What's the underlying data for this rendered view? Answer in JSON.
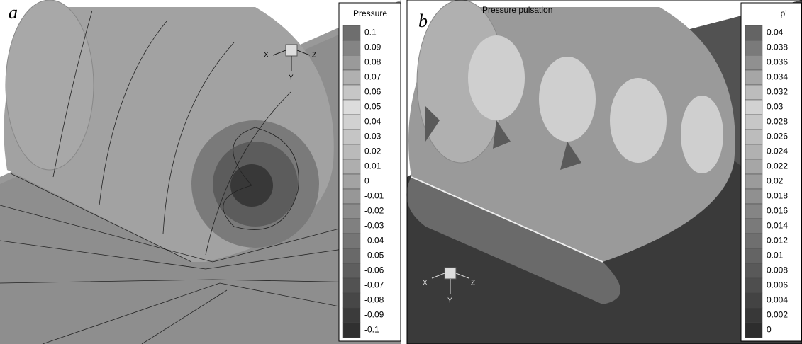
{
  "panels": [
    {
      "label": "a",
      "legend": {
        "title": "Pressure",
        "entries": [
          "0.1",
          "0.09",
          "0.08",
          "0.07",
          "0.06",
          "0.05",
          "0.04",
          "0.03",
          "0.02",
          "0.01",
          "0",
          "-0.01",
          "-0.02",
          "-0.03",
          "-0.04",
          "-0.05",
          "-0.06",
          "-0.07",
          "-0.08",
          "-0.09",
          "-0.1"
        ]
      },
      "axes": [
        "X",
        "Y",
        "Z"
      ]
    },
    {
      "label": "b",
      "title": "Pressure pulsation",
      "legend": {
        "title": "p'",
        "entries": [
          "0.04",
          "0.038",
          "0.036",
          "0.034",
          "0.032",
          "0.03",
          "0.028",
          "0.026",
          "0.024",
          "0.022",
          "0.02",
          "0.018",
          "0.016",
          "0.014",
          "0.012",
          "0.01",
          "0.008",
          "0.006",
          "0.004",
          "0.002",
          "0"
        ]
      },
      "axes": [
        "X",
        "Y",
        "Z"
      ]
    }
  ]
}
